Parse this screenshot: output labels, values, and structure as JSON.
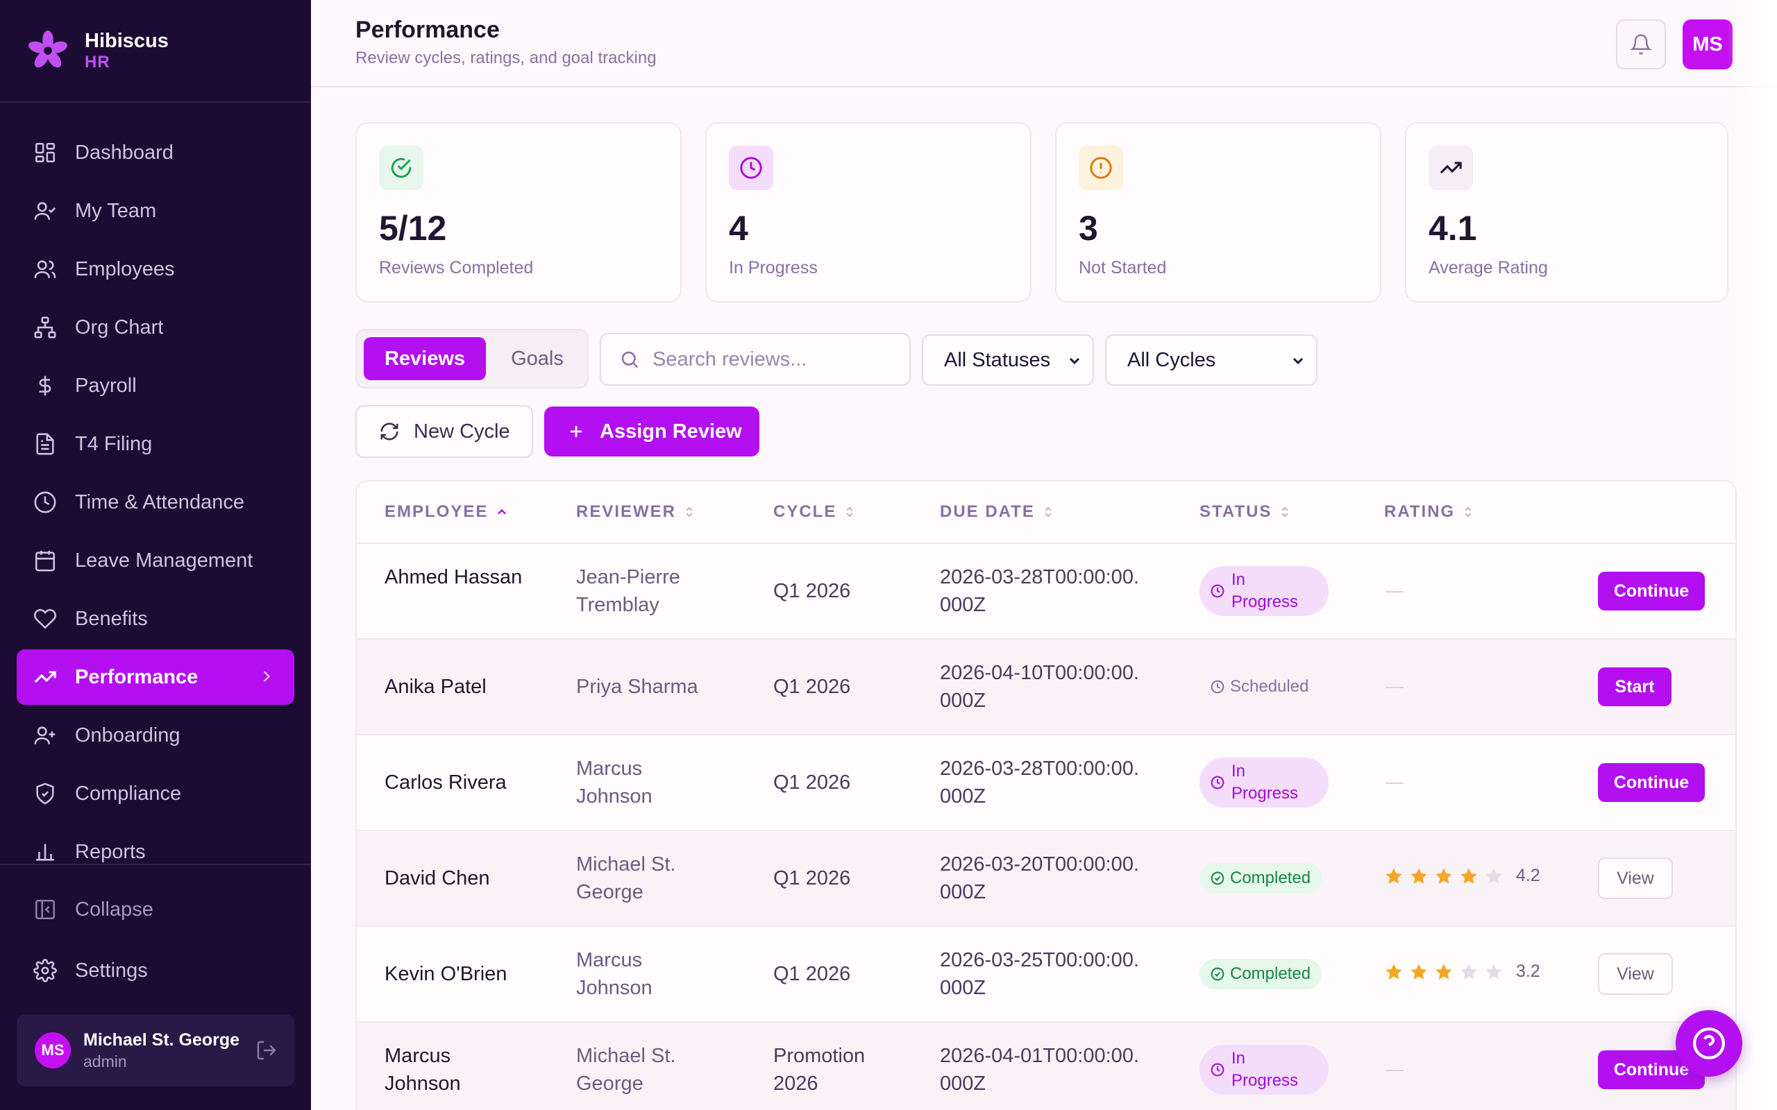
{
  "brand": {
    "name": "Hibiscus",
    "sub": "HR"
  },
  "nav": [
    {
      "label": "Dashboard",
      "icon": "dashboard-icon"
    },
    {
      "label": "My Team",
      "icon": "team-icon"
    },
    {
      "label": "Employees",
      "icon": "employees-icon"
    },
    {
      "label": "Org Chart",
      "icon": "org-chart-icon"
    },
    {
      "label": "Payroll",
      "icon": "dollar-icon"
    },
    {
      "label": "T4 Filing",
      "icon": "document-icon"
    },
    {
      "label": "Time & Attendance",
      "icon": "clock-icon"
    },
    {
      "label": "Leave Management",
      "icon": "calendar-icon"
    },
    {
      "label": "Benefits",
      "icon": "heart-icon"
    },
    {
      "label": "Performance",
      "icon": "trending-up-icon",
      "active": true
    },
    {
      "label": "Onboarding",
      "icon": "user-plus-icon"
    },
    {
      "label": "Compliance",
      "icon": "shield-icon"
    },
    {
      "label": "Reports",
      "icon": "bar-chart-icon"
    }
  ],
  "sidebar_bottom": {
    "collapse": "Collapse",
    "settings": "Settings"
  },
  "user": {
    "initials": "MS",
    "name": "Michael St. George",
    "role": "admin"
  },
  "header": {
    "title": "Performance",
    "subtitle": "Review cycles, ratings, and goal tracking",
    "avatar": "MS"
  },
  "stats": [
    {
      "value": "5/12",
      "label": "Reviews Completed",
      "icon": "check-circle-icon",
      "color": "#16a34a"
    },
    {
      "value": "4",
      "label": "In Progress",
      "icon": "clock-icon",
      "color": "#a10cd6"
    },
    {
      "value": "3",
      "label": "Not Started",
      "icon": "alert-circle-icon",
      "color": "#d97706"
    },
    {
      "value": "4.1",
      "label": "Average Rating",
      "icon": "trending-up-icon",
      "color": "#1f1630"
    }
  ],
  "tabs": {
    "reviews": "Reviews",
    "goals": "Goals"
  },
  "search": {
    "placeholder": "Search reviews..."
  },
  "filters": {
    "status": "All Statuses",
    "cycle": "All Cycles"
  },
  "actions": {
    "new_cycle": "New Cycle",
    "assign_review": "Assign Review"
  },
  "table": {
    "columns": [
      "EMPLOYEE",
      "REVIEWER",
      "CYCLE",
      "DUE DATE",
      "STATUS",
      "RATING"
    ],
    "rows": [
      {
        "employee": "Ahmed Hassan",
        "reviewer": "Jean-Pierre Tremblay",
        "cycle": "Q1 2026",
        "due": "2026-03-28T00:00:00.000Z",
        "status": "In Progress",
        "rating": null,
        "action": "Continue"
      },
      {
        "employee": "Anika Patel",
        "reviewer": "Priya Sharma",
        "cycle": "Q1 2026",
        "due": "2026-04-10T00:00:00.000Z",
        "status": "Scheduled",
        "rating": null,
        "action": "Start"
      },
      {
        "employee": "Carlos Rivera",
        "reviewer": "Marcus Johnson",
        "cycle": "Q1 2026",
        "due": "2026-03-28T00:00:00.000Z",
        "status": "In Progress",
        "rating": null,
        "action": "Continue"
      },
      {
        "employee": "David Chen",
        "reviewer": "Michael St. George",
        "cycle": "Q1 2026",
        "due": "2026-03-20T00:00:00.000Z",
        "status": "Completed",
        "rating": "4.2",
        "stars": 4,
        "action": "View"
      },
      {
        "employee": "Kevin O'Brien",
        "reviewer": "Marcus Johnson",
        "cycle": "Q1 2026",
        "due": "2026-03-25T00:00:00.000Z",
        "status": "Completed",
        "rating": "3.2",
        "stars": 3,
        "action": "View"
      },
      {
        "employee": "Marcus Johnson",
        "reviewer": "Michael St. George",
        "cycle": "Promotion 2026",
        "due": "2026-04-01T00:00:00.000Z",
        "status": "In Progress",
        "rating": null,
        "action": "Continue"
      }
    ]
  }
}
